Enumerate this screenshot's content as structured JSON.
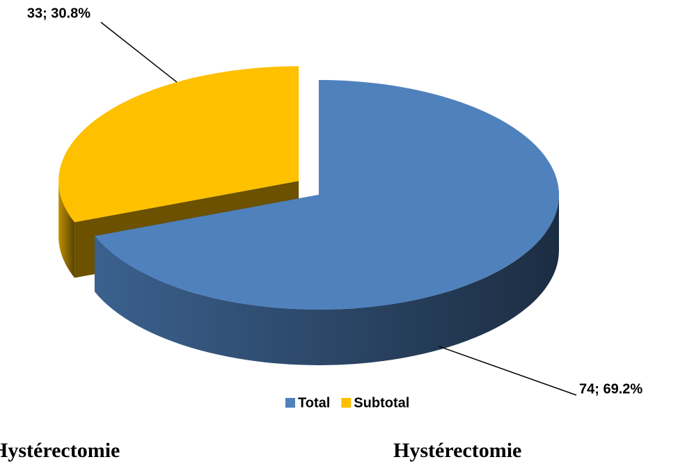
{
  "chart_data": {
    "type": "pie3d",
    "categories": [
      "Total",
      "Subtotal"
    ],
    "values": [
      74,
      33
    ],
    "value_labels": [
      "74; 69.2%",
      "33; 30.8%"
    ],
    "colors": [
      "#4f81bd",
      "#ffc000"
    ],
    "legend": "bottom",
    "captions": [
      "Hystérectomie",
      "Hystérectomie"
    ]
  }
}
